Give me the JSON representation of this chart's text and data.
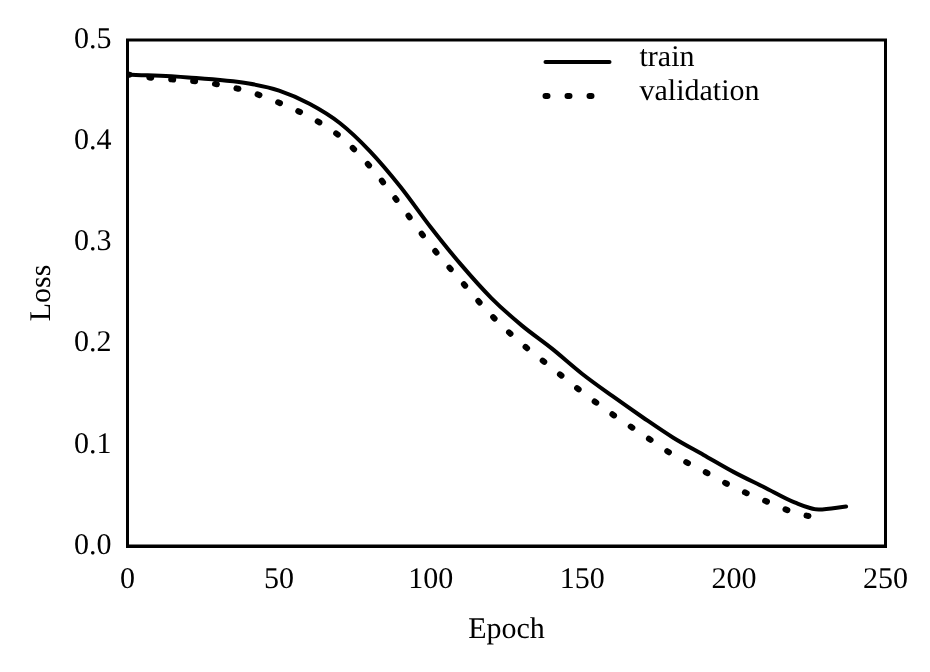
{
  "chart_data": {
    "type": "line",
    "xlabel": "Epoch",
    "ylabel": "Loss",
    "xlim": [
      0,
      250
    ],
    "xticks": [
      0,
      50,
      100,
      150,
      200,
      250
    ],
    "ylim": [
      0,
      0.5
    ],
    "yticks": [
      {
        "value": 0,
        "label": "0.0"
      },
      0.1,
      0.2,
      0.3,
      0.4,
      0.5
    ],
    "grid": false,
    "legend": "top right",
    "marker": "none",
    "series": [
      {
        "name": "train",
        "color": "#000000",
        "line_style": "solid",
        "x": [
          0,
          20,
          40,
          50,
          60,
          70,
          80,
          90,
          100,
          110,
          120,
          130,
          140,
          150,
          160,
          170,
          180,
          190,
          200,
          210,
          220,
          228,
          237
        ],
        "values": [
          0.466,
          0.463,
          0.457,
          0.45,
          0.437,
          0.418,
          0.39,
          0.355,
          0.315,
          0.278,
          0.245,
          0.218,
          0.195,
          0.17,
          0.148,
          0.127,
          0.107,
          0.09,
          0.073,
          0.058,
          0.043,
          0.036,
          0.039
        ]
      },
      {
        "name": "validation",
        "color": "#000000",
        "line_style": "dotted",
        "x": [
          0,
          10,
          20,
          30,
          40,
          50,
          60,
          70,
          80,
          90,
          100,
          110,
          120,
          130,
          140,
          150,
          160,
          170,
          180,
          190,
          200,
          210,
          220,
          229
        ],
        "values": [
          0.466,
          0.462,
          0.46,
          0.456,
          0.449,
          0.438,
          0.424,
          0.405,
          0.375,
          0.337,
          0.297,
          0.262,
          0.228,
          0.2,
          0.176,
          0.152,
          0.13,
          0.11,
          0.09,
          0.074,
          0.058,
          0.045,
          0.033,
          0.027
        ]
      }
    ]
  }
}
